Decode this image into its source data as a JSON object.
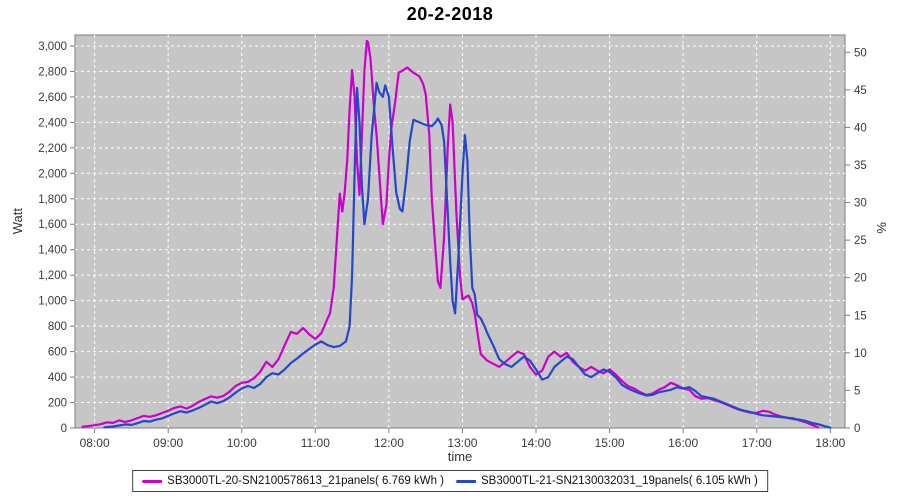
{
  "chart_data": {
    "type": "line",
    "title": "20-2-2018",
    "xlabel": "time",
    "ylabel_left": "Watt",
    "ylabel_right": "%",
    "grid": true,
    "legend_position": "bottom",
    "plot_bg_color": "#c6c6c6",
    "gridline_color": "#ffffff",
    "axis_color": "#7d7d7d",
    "tick_label_color": "#3b3b3b",
    "x_domain_minutes": [
      464,
      1092
    ],
    "x_ticks": [
      {
        "min": 480,
        "label": "08:00"
      },
      {
        "min": 540,
        "label": "09:00"
      },
      {
        "min": 600,
        "label": "10:00"
      },
      {
        "min": 660,
        "label": "11:00"
      },
      {
        "min": 720,
        "label": "12:00"
      },
      {
        "min": 780,
        "label": "13:00"
      },
      {
        "min": 840,
        "label": "14:00"
      },
      {
        "min": 900,
        "label": "15:00"
      },
      {
        "min": 960,
        "label": "16:00"
      },
      {
        "min": 1020,
        "label": "17:00"
      },
      {
        "min": 1080,
        "label": "18:00"
      }
    ],
    "y_left": {
      "min": 0,
      "max": 3086,
      "tick_step": 200,
      "ticks": [
        0,
        200,
        400,
        600,
        800,
        1000,
        1200,
        1400,
        1600,
        1800,
        2000,
        2200,
        2400,
        2600,
        2800,
        3000
      ]
    },
    "y_right": {
      "min": 0,
      "max": 52.3,
      "tick_step": 5,
      "ticks": [
        0,
        5,
        10,
        15,
        20,
        25,
        30,
        35,
        40,
        45,
        50
      ]
    },
    "series": [
      {
        "name": "SB3000TL-20-SN2100578613_21panels( 6.769 kWh )",
        "color": "#cc00cc",
        "energy_kwh": "6.769",
        "points": [
          [
            470,
            10
          ],
          [
            475,
            15
          ],
          [
            480,
            22
          ],
          [
            485,
            30
          ],
          [
            490,
            45
          ],
          [
            495,
            40
          ],
          [
            500,
            60
          ],
          [
            505,
            48
          ],
          [
            510,
            60
          ],
          [
            515,
            78
          ],
          [
            520,
            95
          ],
          [
            525,
            88
          ],
          [
            530,
            100
          ],
          [
            535,
            118
          ],
          [
            540,
            135
          ],
          [
            545,
            158
          ],
          [
            550,
            170
          ],
          [
            555,
            152
          ],
          [
            560,
            175
          ],
          [
            565,
            205
          ],
          [
            570,
            228
          ],
          [
            575,
            248
          ],
          [
            580,
            238
          ],
          [
            585,
            252
          ],
          [
            590,
            285
          ],
          [
            595,
            330
          ],
          [
            600,
            355
          ],
          [
            605,
            362
          ],
          [
            610,
            390
          ],
          [
            615,
            440
          ],
          [
            620,
            520
          ],
          [
            625,
            480
          ],
          [
            630,
            540
          ],
          [
            635,
            650
          ],
          [
            640,
            755
          ],
          [
            645,
            740
          ],
          [
            650,
            785
          ],
          [
            655,
            735
          ],
          [
            660,
            700
          ],
          [
            665,
            745
          ],
          [
            670,
            860
          ],
          [
            672,
            900
          ],
          [
            675,
            1100
          ],
          [
            678,
            1550
          ],
          [
            680,
            1840
          ],
          [
            682,
            1700
          ],
          [
            684,
            1850
          ],
          [
            686,
            2100
          ],
          [
            688,
            2500
          ],
          [
            690,
            2810
          ],
          [
            692,
            2600
          ],
          [
            694,
            2100
          ],
          [
            696,
            1830
          ],
          [
            698,
            2300
          ],
          [
            700,
            2800
          ],
          [
            702,
            3040
          ],
          [
            703,
            3030
          ],
          [
            705,
            2900
          ],
          [
            708,
            2500
          ],
          [
            710,
            2300
          ],
          [
            712,
            2020
          ],
          [
            715,
            1600
          ],
          [
            718,
            1750
          ],
          [
            720,
            2100
          ],
          [
            722,
            2350
          ],
          [
            725,
            2550
          ],
          [
            728,
            2790
          ],
          [
            730,
            2800
          ],
          [
            735,
            2830
          ],
          [
            740,
            2790
          ],
          [
            745,
            2760
          ],
          [
            748,
            2700
          ],
          [
            750,
            2620
          ],
          [
            753,
            2300
          ],
          [
            755,
            1800
          ],
          [
            758,
            1400
          ],
          [
            760,
            1150
          ],
          [
            762,
            1100
          ],
          [
            765,
            1500
          ],
          [
            768,
            2200
          ],
          [
            770,
            2540
          ],
          [
            772,
            2400
          ],
          [
            775,
            1700
          ],
          [
            778,
            1200
          ],
          [
            780,
            1010
          ],
          [
            783,
            1030
          ],
          [
            785,
            1040
          ],
          [
            788,
            980
          ],
          [
            790,
            900
          ],
          [
            793,
            700
          ],
          [
            795,
            580
          ],
          [
            800,
            530
          ],
          [
            805,
            505
          ],
          [
            810,
            480
          ],
          [
            815,
            520
          ],
          [
            820,
            560
          ],
          [
            825,
            600
          ],
          [
            830,
            580
          ],
          [
            835,
            480
          ],
          [
            840,
            420
          ],
          [
            845,
            450
          ],
          [
            850,
            560
          ],
          [
            855,
            600
          ],
          [
            860,
            560
          ],
          [
            865,
            590
          ],
          [
            870,
            520
          ],
          [
            875,
            480
          ],
          [
            880,
            450
          ],
          [
            885,
            480
          ],
          [
            890,
            450
          ],
          [
            895,
            430
          ],
          [
            900,
            460
          ],
          [
            905,
            420
          ],
          [
            910,
            370
          ],
          [
            915,
            330
          ],
          [
            920,
            310
          ],
          [
            925,
            280
          ],
          [
            930,
            260
          ],
          [
            935,
            270
          ],
          [
            940,
            300
          ],
          [
            945,
            320
          ],
          [
            950,
            355
          ],
          [
            955,
            335
          ],
          [
            960,
            310
          ],
          [
            965,
            300
          ],
          [
            970,
            250
          ],
          [
            975,
            230
          ],
          [
            980,
            235
          ],
          [
            985,
            220
          ],
          [
            990,
            205
          ],
          [
            995,
            185
          ],
          [
            1000,
            165
          ],
          [
            1005,
            145
          ],
          [
            1010,
            132
          ],
          [
            1015,
            120
          ],
          [
            1020,
            118
          ],
          [
            1025,
            135
          ],
          [
            1030,
            128
          ],
          [
            1035,
            105
          ],
          [
            1040,
            90
          ],
          [
            1045,
            80
          ],
          [
            1050,
            75
          ],
          [
            1055,
            60
          ],
          [
            1060,
            45
          ],
          [
            1065,
            25
          ],
          [
            1070,
            5
          ]
        ]
      },
      {
        "name": "SB3000TL-21-SN2130032031_19panels( 6.105 kWh )",
        "color": "#2547c8",
        "energy_kwh": "6.105",
        "points": [
          [
            488,
            5
          ],
          [
            495,
            12
          ],
          [
            500,
            20
          ],
          [
            505,
            28
          ],
          [
            510,
            24
          ],
          [
            515,
            38
          ],
          [
            520,
            55
          ],
          [
            525,
            50
          ],
          [
            530,
            65
          ],
          [
            535,
            75
          ],
          [
            540,
            95
          ],
          [
            545,
            115
          ],
          [
            550,
            132
          ],
          [
            555,
            122
          ],
          [
            560,
            138
          ],
          [
            565,
            158
          ],
          [
            570,
            182
          ],
          [
            575,
            208
          ],
          [
            580,
            195
          ],
          [
            585,
            212
          ],
          [
            590,
            240
          ],
          [
            595,
            278
          ],
          [
            600,
            310
          ],
          [
            605,
            330
          ],
          [
            610,
            315
          ],
          [
            615,
            345
          ],
          [
            620,
            400
          ],
          [
            625,
            430
          ],
          [
            630,
            420
          ],
          [
            635,
            460
          ],
          [
            640,
            510
          ],
          [
            645,
            545
          ],
          [
            650,
            585
          ],
          [
            655,
            620
          ],
          [
            660,
            655
          ],
          [
            665,
            680
          ],
          [
            670,
            650
          ],
          [
            675,
            635
          ],
          [
            680,
            645
          ],
          [
            685,
            680
          ],
          [
            688,
            800
          ],
          [
            690,
            1200
          ],
          [
            692,
            2000
          ],
          [
            694,
            2670
          ],
          [
            696,
            2400
          ],
          [
            698,
            1900
          ],
          [
            700,
            1600
          ],
          [
            703,
            1800
          ],
          [
            706,
            2300
          ],
          [
            710,
            2710
          ],
          [
            712,
            2640
          ],
          [
            715,
            2600
          ],
          [
            717,
            2690
          ],
          [
            720,
            2600
          ],
          [
            723,
            2200
          ],
          [
            726,
            1850
          ],
          [
            729,
            1720
          ],
          [
            731,
            1700
          ],
          [
            734,
            1950
          ],
          [
            737,
            2250
          ],
          [
            740,
            2420
          ],
          [
            745,
            2400
          ],
          [
            750,
            2380
          ],
          [
            755,
            2370
          ],
          [
            758,
            2400
          ],
          [
            760,
            2430
          ],
          [
            763,
            2380
          ],
          [
            765,
            2250
          ],
          [
            768,
            1700
          ],
          [
            770,
            1300
          ],
          [
            772,
            1000
          ],
          [
            774,
            900
          ],
          [
            777,
            1400
          ],
          [
            780,
            2000
          ],
          [
            782,
            2300
          ],
          [
            784,
            2100
          ],
          [
            786,
            1500
          ],
          [
            788,
            1100
          ],
          [
            790,
            1050
          ],
          [
            792,
            890
          ],
          [
            795,
            860
          ],
          [
            798,
            800
          ],
          [
            800,
            750
          ],
          [
            805,
            650
          ],
          [
            810,
            540
          ],
          [
            815,
            500
          ],
          [
            820,
            480
          ],
          [
            825,
            520
          ],
          [
            830,
            560
          ],
          [
            835,
            530
          ],
          [
            840,
            460
          ],
          [
            845,
            380
          ],
          [
            850,
            400
          ],
          [
            855,
            480
          ],
          [
            860,
            520
          ],
          [
            865,
            560
          ],
          [
            870,
            540
          ],
          [
            875,
            480
          ],
          [
            880,
            420
          ],
          [
            885,
            400
          ],
          [
            890,
            430
          ],
          [
            895,
            460
          ],
          [
            900,
            440
          ],
          [
            905,
            400
          ],
          [
            910,
            340
          ],
          [
            915,
            310
          ],
          [
            920,
            290
          ],
          [
            925,
            270
          ],
          [
            930,
            255
          ],
          [
            935,
            260
          ],
          [
            940,
            280
          ],
          [
            945,
            290
          ],
          [
            950,
            300
          ],
          [
            955,
            320
          ],
          [
            960,
            310
          ],
          [
            965,
            320
          ],
          [
            970,
            290
          ],
          [
            975,
            250
          ],
          [
            980,
            240
          ],
          [
            985,
            230
          ],
          [
            990,
            210
          ],
          [
            995,
            190
          ],
          [
            1000,
            170
          ],
          [
            1005,
            150
          ],
          [
            1010,
            135
          ],
          [
            1015,
            125
          ],
          [
            1020,
            110
          ],
          [
            1025,
            100
          ],
          [
            1030,
            95
          ],
          [
            1035,
            90
          ],
          [
            1040,
            85
          ],
          [
            1045,
            80
          ],
          [
            1050,
            70
          ],
          [
            1055,
            65
          ],
          [
            1060,
            55
          ],
          [
            1065,
            40
          ],
          [
            1070,
            30
          ],
          [
            1075,
            15
          ],
          [
            1080,
            3
          ]
        ]
      }
    ]
  }
}
